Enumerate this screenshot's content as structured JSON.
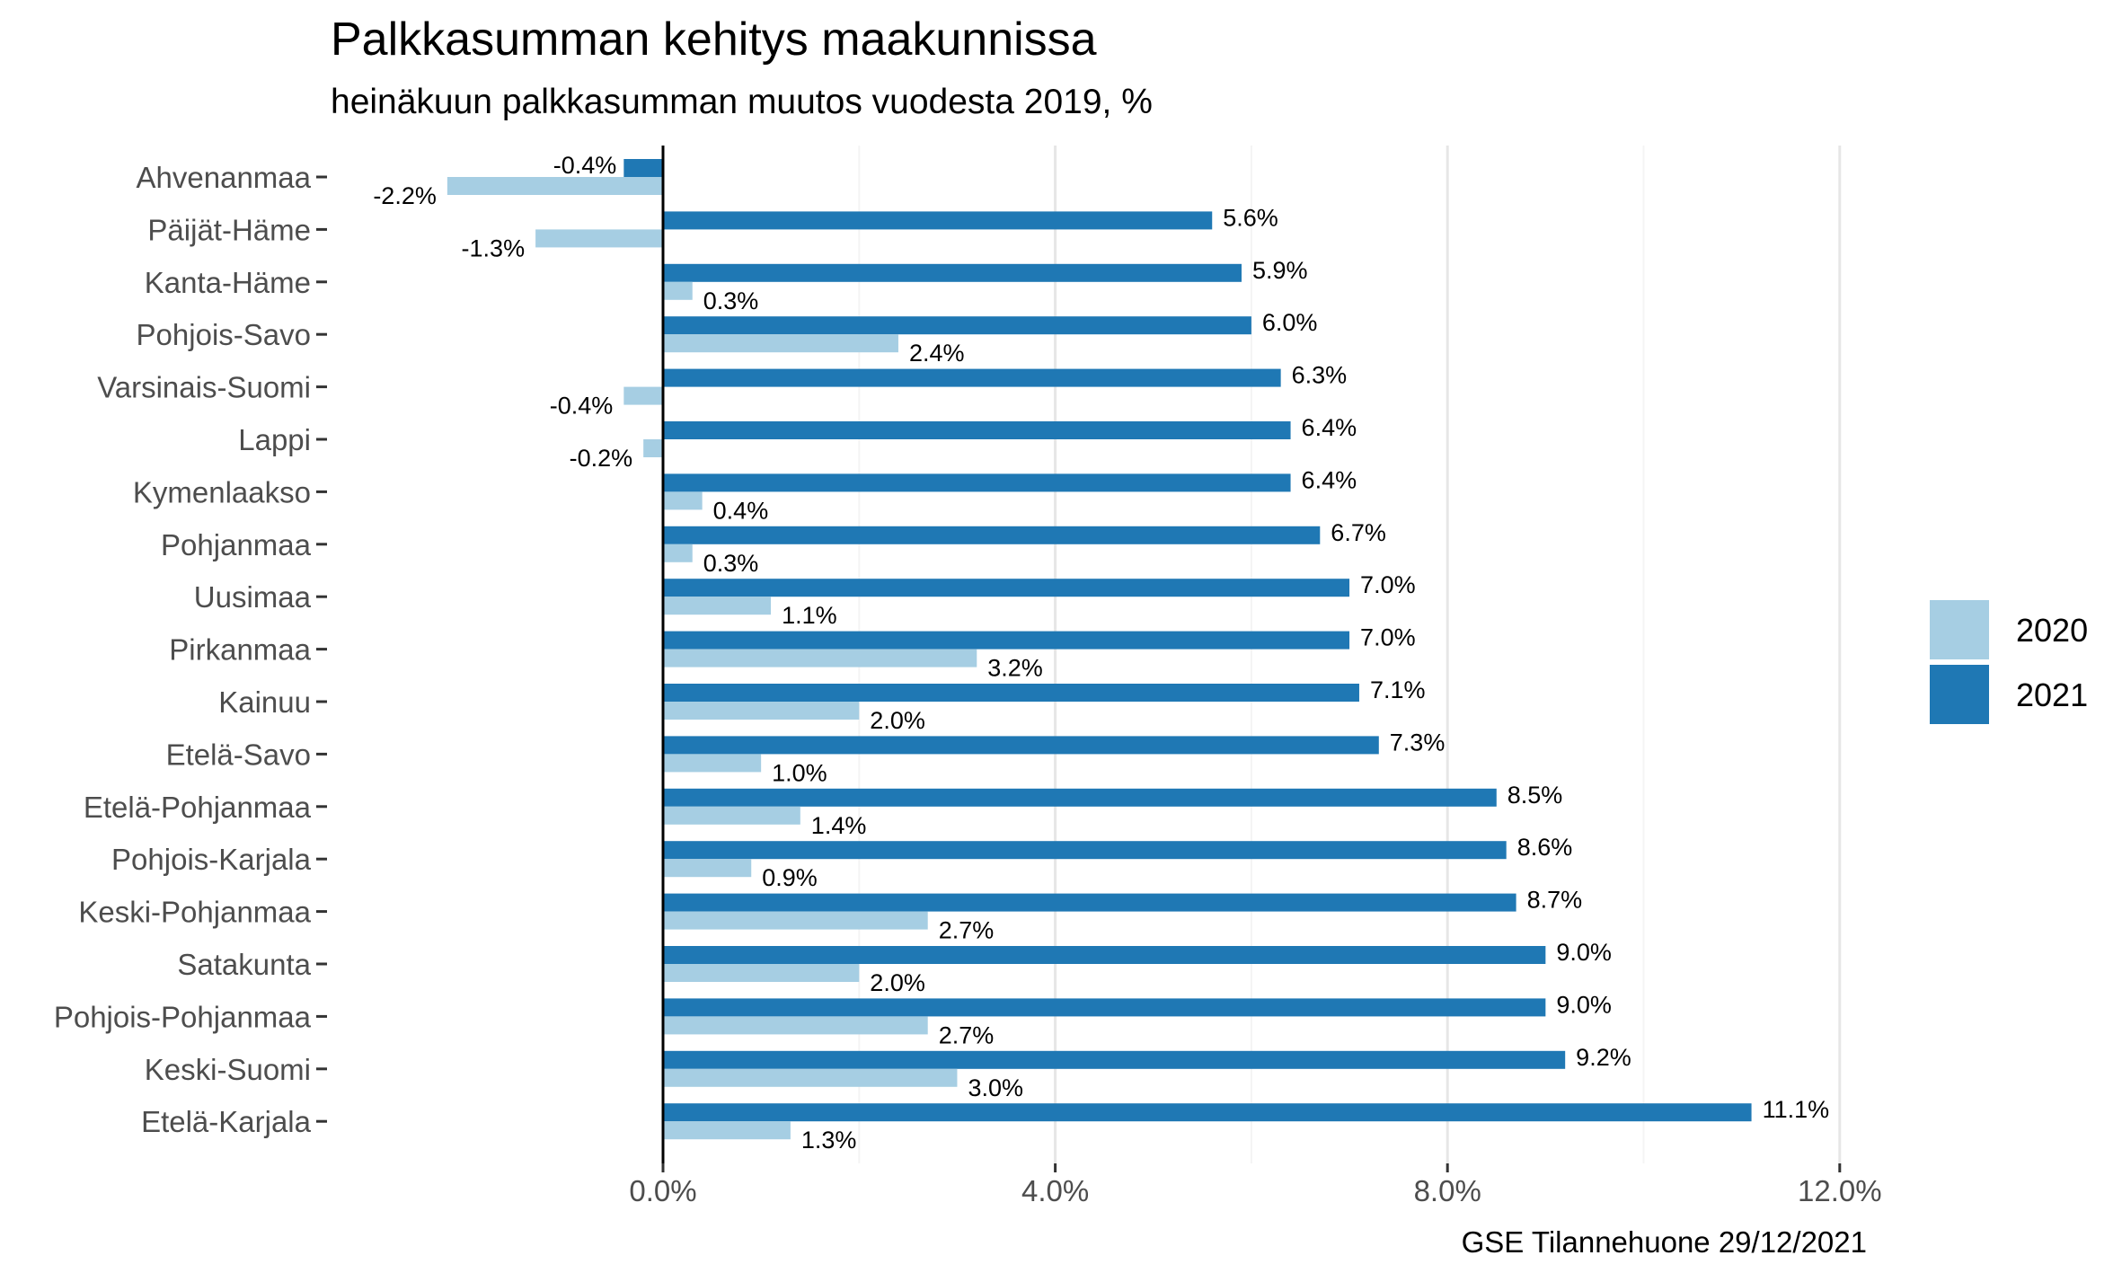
{
  "chart_data": {
    "type": "bar",
    "orientation": "horizontal",
    "title": "Palkkasumman kehitys maakunnissa",
    "subtitle": "heinäkuun palkkasumman muutos vuodesta 2019, %",
    "caption": "GSE Tilannehuone 29/12/2021",
    "categories": [
      "Ahvenanmaa",
      "Päijät-Häme",
      "Kanta-Häme",
      "Pohjois-Savo",
      "Varsinais-Suomi",
      "Lappi",
      "Kymenlaakso",
      "Pohjanmaa",
      "Uusimaa",
      "Pirkanmaa",
      "Kainuu",
      "Etelä-Savo",
      "Etelä-Pohjanmaa",
      "Pohjois-Karjala",
      "Keski-Pohjanmaa",
      "Satakunta",
      "Pohjois-Pohjanmaa",
      "Keski-Suomi",
      "Etelä-Karjala"
    ],
    "series": [
      {
        "name": "2020",
        "color": "#a6cee3",
        "values": [
          -2.2,
          -1.3,
          0.3,
          2.4,
          -0.4,
          -0.2,
          0.4,
          0.3,
          1.1,
          3.2,
          2.0,
          1.0,
          1.4,
          0.9,
          2.7,
          2.0,
          2.7,
          3.0,
          1.3
        ],
        "labels": [
          "-2.2%",
          "-1.3%",
          "0.3%",
          "2.4%",
          "-0.4%",
          "-0.2%",
          "0.4%",
          "0.3%",
          "1.1%",
          "3.2%",
          "2.0%",
          "1.0%",
          "1.4%",
          "0.9%",
          "2.7%",
          "2.0%",
          "2.7%",
          "3.0%",
          "1.3%"
        ]
      },
      {
        "name": "2021",
        "color": "#1f78b4",
        "values": [
          -0.4,
          5.6,
          5.9,
          6.0,
          6.3,
          6.4,
          6.4,
          6.7,
          7.0,
          7.0,
          7.1,
          7.3,
          8.5,
          8.6,
          8.7,
          9.0,
          9.0,
          9.2,
          11.1
        ],
        "labels": [
          "-0.4%",
          "5.6%",
          "5.9%",
          "6.0%",
          "6.3%",
          "6.4%",
          "6.4%",
          "6.7%",
          "7.0%",
          "7.0%",
          "7.1%",
          "7.3%",
          "8.5%",
          "8.6%",
          "8.7%",
          "9.0%",
          "9.0%",
          "9.2%",
          "11.1%"
        ]
      }
    ],
    "xticks": [
      0,
      4,
      8,
      12
    ],
    "xtick_labels": [
      "0.0%",
      "4.0%",
      "8.0%",
      "12.0%"
    ],
    "xlim": [
      -3.3,
      13.7
    ],
    "legend_position": "right",
    "grid": "vertical major"
  }
}
